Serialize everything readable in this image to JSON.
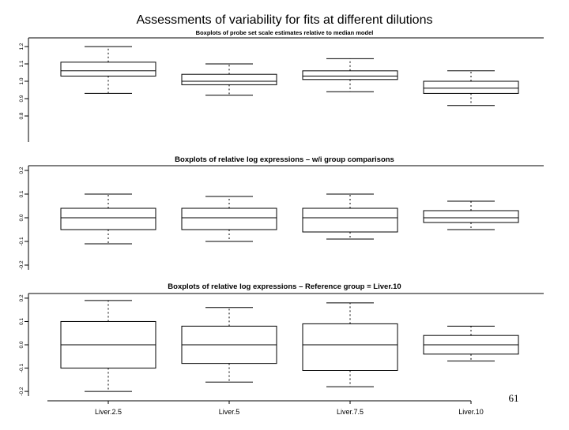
{
  "slide": {
    "title": "Assessments of variability for fits at different dilutions",
    "page_number": "61"
  },
  "chart_data": [
    {
      "type": "boxplot",
      "title": "Boxplots of probe set scale estimates relative to median model",
      "xlabel": "",
      "ylabel": "",
      "categories": [
        "Liver.2.5",
        "Liver.5",
        "Liver.7.5",
        "Liver.10"
      ],
      "ylim": [
        0.65,
        1.25
      ],
      "y_ticks": [
        0.8,
        0.9,
        1.0,
        1.1,
        1.2
      ],
      "y_tick_labels": [
        "0.8",
        "0.9",
        "1.0",
        "1.1",
        "1.2"
      ],
      "boxes": [
        {
          "category": "Liver.2.5",
          "whisker_low": 0.93,
          "q1": 1.03,
          "median": 1.06,
          "q3": 1.11,
          "whisker_high": 1.2
        },
        {
          "category": "Liver.5",
          "whisker_low": 0.92,
          "q1": 0.98,
          "median": 1.0,
          "q3": 1.04,
          "whisker_high": 1.1
        },
        {
          "category": "Liver.7.5",
          "whisker_low": 0.94,
          "q1": 1.01,
          "median": 1.03,
          "q3": 1.06,
          "whisker_high": 1.13
        },
        {
          "category": "Liver.10",
          "whisker_low": 0.86,
          "q1": 0.93,
          "median": 0.96,
          "q3": 1.0,
          "whisker_high": 1.06
        }
      ]
    },
    {
      "type": "boxplot",
      "title": "Boxplots of relative log expressions – w/i group comparisons",
      "xlabel": "",
      "ylabel": "",
      "categories": [
        "Liver.2.5",
        "Liver.5",
        "Liver.7.5",
        "Liver.10"
      ],
      "ylim": [
        -0.22,
        0.22
      ],
      "y_ticks": [
        -0.2,
        -0.1,
        0.0,
        0.1,
        0.2
      ],
      "y_tick_labels": [
        "-0.2",
        "-0.1",
        "0.0",
        "0.1",
        "0.2"
      ],
      "boxes": [
        {
          "category": "Liver.2.5",
          "whisker_low": -0.11,
          "q1": -0.05,
          "median": 0.0,
          "q3": 0.04,
          "whisker_high": 0.1
        },
        {
          "category": "Liver.5",
          "whisker_low": -0.1,
          "q1": -0.05,
          "median": 0.0,
          "q3": 0.04,
          "whisker_high": 0.09
        },
        {
          "category": "Liver.7.5",
          "whisker_low": -0.09,
          "q1": -0.06,
          "median": 0.0,
          "q3": 0.04,
          "whisker_high": 0.1
        },
        {
          "category": "Liver.10",
          "whisker_low": -0.05,
          "q1": -0.02,
          "median": 0.0,
          "q3": 0.03,
          "whisker_high": 0.07
        }
      ]
    },
    {
      "type": "boxplot",
      "title": "Boxplots of relative log expressions – Reference group = Liver.10",
      "xlabel": "",
      "ylabel": "",
      "categories": [
        "Liver.2.5",
        "Liver.5",
        "Liver.7.5",
        "Liver.10"
      ],
      "ylim": [
        -0.22,
        0.22
      ],
      "y_ticks": [
        -0.2,
        -0.1,
        0.0,
        0.1,
        0.2
      ],
      "y_tick_labels": [
        "-0.2",
        "-0.1",
        "0.0",
        "0.1",
        "0.2"
      ],
      "boxes": [
        {
          "category": "Liver.2.5",
          "whisker_low": -0.2,
          "q1": -0.1,
          "median": 0.0,
          "q3": 0.1,
          "whisker_high": 0.19
        },
        {
          "category": "Liver.5",
          "whisker_low": -0.16,
          "q1": -0.08,
          "median": 0.0,
          "q3": 0.08,
          "whisker_high": 0.16
        },
        {
          "category": "Liver.7.5",
          "whisker_low": -0.18,
          "q1": -0.11,
          "median": 0.0,
          "q3": 0.09,
          "whisker_high": 0.18
        },
        {
          "category": "Liver.10",
          "whisker_low": -0.07,
          "q1": -0.04,
          "median": 0.0,
          "q3": 0.04,
          "whisker_high": 0.08
        }
      ]
    }
  ]
}
